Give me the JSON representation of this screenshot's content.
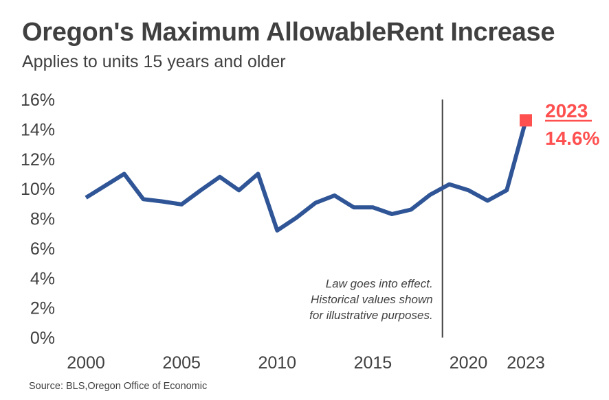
{
  "chart_data": {
    "type": "line",
    "title": "Oregon's Maximum AllowableRent Increase",
    "subtitle": "Applies to units 15 years and older",
    "source": "Source: BLS,Oregon Office of Economic",
    "y_tick_labels": [
      "0%",
      "2%",
      "4%",
      "6%",
      "8%",
      "10%",
      "12%",
      "14%",
      "16%"
    ],
    "y_ticks": [
      0,
      2,
      4,
      6,
      8,
      10,
      12,
      14,
      16
    ],
    "x_tick_labels": [
      "2000",
      "2005",
      "2010",
      "2015",
      "2020",
      "2023"
    ],
    "x_ticks": [
      2000,
      2005,
      2010,
      2015,
      2020,
      2023
    ],
    "xlim": [
      2000,
      2023
    ],
    "ylim": [
      0,
      16
    ],
    "grid": false,
    "series": [
      {
        "color": "#2f5597",
        "x": [
          2000,
          2001,
          2002,
          2003,
          2004,
          2005,
          2006,
          2007,
          2008,
          2009,
          2010,
          2011,
          2012,
          2013,
          2014,
          2015,
          2016,
          2017,
          2018,
          2019,
          2020,
          2021,
          2022,
          2023
        ],
        "values": [
          9.4,
          10.2,
          11.0,
          9.3,
          9.15,
          8.95,
          9.9,
          10.8,
          9.9,
          11.0,
          7.2,
          8.05,
          9.05,
          9.55,
          8.75,
          8.75,
          8.3,
          8.6,
          9.6,
          10.3,
          9.9,
          9.2,
          9.9,
          14.6
        ]
      }
    ],
    "vline": {
      "x": 2019,
      "color": "#404040",
      "annotation": [
        "Law goes into effect.",
        "Historical values shown",
        "for illustrative purposes."
      ]
    },
    "highlight": {
      "x": 2023,
      "y": 14.6,
      "color": "#ff5050",
      "year_label": "2023",
      "value_label": "14.6%"
    }
  }
}
